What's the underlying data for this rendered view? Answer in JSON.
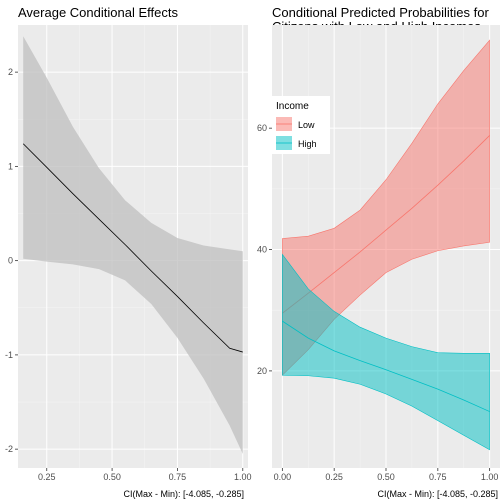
{
  "chart_data": [
    {
      "type": "line",
      "title": "Average Conditional Effects",
      "caption": "CI(Max - Min): [-4.085, -0.285]",
      "xlim": [
        0.14,
        1.02
      ],
      "ylim": [
        -2.2,
        2.5
      ],
      "x_ticks": [
        0.25,
        0.5,
        0.75,
        1.0
      ],
      "x_tick_labels": [
        "0.25",
        "0.50",
        "0.75",
        "1.00"
      ],
      "y_ticks": [
        -2,
        -1,
        0,
        1,
        2
      ],
      "y_tick_labels": [
        "-2",
        "-1",
        "0",
        "1",
        "2"
      ],
      "grid": true,
      "series": [
        {
          "color": "#000000",
          "band_color": "#bdbdbd",
          "x": [
            0.16,
            0.25,
            0.35,
            0.45,
            0.55,
            0.65,
            0.75,
            0.85,
            0.95,
            1.0
          ],
          "y": [
            1.24,
            0.99,
            0.71,
            0.44,
            0.17,
            -0.11,
            -0.38,
            -0.66,
            -0.93,
            -0.97
          ],
          "lower": [
            0.02,
            -0.01,
            -0.04,
            -0.09,
            -0.21,
            -0.46,
            -0.82,
            -1.25,
            -1.75,
            -2.05
          ],
          "upper": [
            2.38,
            1.94,
            1.42,
            0.98,
            0.64,
            0.4,
            0.24,
            0.16,
            0.12,
            0.1
          ]
        }
      ]
    },
    {
      "type": "line",
      "title_lines": [
        "Conditional Predicted Probabilities for",
        "Citizens with Low and High Incomes"
      ],
      "caption": "CI(Max - Min): [-4.085, -0.285]",
      "xlim": [
        -0.05,
        1.05
      ],
      "ylim": [
        4,
        77
      ],
      "x_ticks": [
        0.0,
        0.25,
        0.5,
        0.75,
        1.0
      ],
      "x_tick_labels": [
        "0.00",
        "0.25",
        "0.50",
        "0.75",
        "1.00"
      ],
      "y_ticks": [
        20,
        40,
        60
      ],
      "y_tick_labels": [
        "20",
        "40",
        "60"
      ],
      "grid": true,
      "legend": {
        "title": "Income",
        "position": "top-left",
        "items": [
          {
            "label": "Low",
            "color": "#f8766d"
          },
          {
            "label": "High",
            "color": "#00bfc4"
          }
        ]
      },
      "series": [
        {
          "name": "Low",
          "color": "#f8766d",
          "x": [
            0.0,
            0.125,
            0.25,
            0.375,
            0.5,
            0.625,
            0.75,
            0.875,
            1.0
          ],
          "y": [
            29.5,
            32.8,
            36.2,
            39.6,
            43.2,
            46.8,
            50.6,
            54.6,
            58.8
          ],
          "lower": [
            19.3,
            23.5,
            28.5,
            32.5,
            36.2,
            38.4,
            39.8,
            40.6,
            41.2
          ],
          "upper": [
            41.8,
            42.2,
            43.5,
            46.5,
            51.5,
            57.5,
            64.0,
            69.5,
            74.5
          ]
        },
        {
          "name": "High",
          "color": "#00bfc4",
          "x": [
            0.0,
            0.125,
            0.25,
            0.375,
            0.5,
            0.625,
            0.75,
            0.875,
            1.0
          ],
          "y": [
            28.2,
            25.4,
            23.3,
            21.7,
            20.2,
            18.6,
            17.0,
            15.2,
            13.3
          ],
          "lower": [
            19.3,
            19.2,
            18.8,
            17.8,
            16.2,
            14.2,
            11.8,
            9.4,
            7.0
          ],
          "upper": [
            39.2,
            33.5,
            29.8,
            27.2,
            25.4,
            24.0,
            23.0,
            22.9,
            22.9
          ]
        }
      ]
    }
  ]
}
